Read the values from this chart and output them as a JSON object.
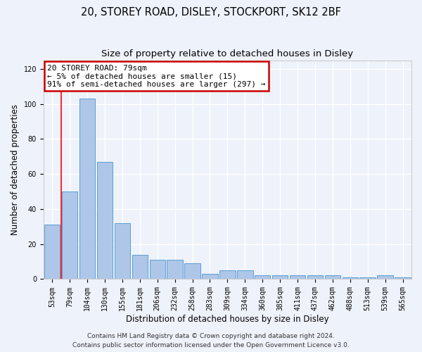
{
  "title_line1": "20, STOREY ROAD, DISLEY, STOCKPORT, SK12 2BF",
  "title_line2": "Size of property relative to detached houses in Disley",
  "xlabel": "Distribution of detached houses by size in Disley",
  "ylabel": "Number of detached properties",
  "categories": [
    "53sqm",
    "79sqm",
    "104sqm",
    "130sqm",
    "155sqm",
    "181sqm",
    "206sqm",
    "232sqm",
    "258sqm",
    "283sqm",
    "309sqm",
    "334sqm",
    "360sqm",
    "385sqm",
    "411sqm",
    "437sqm",
    "462sqm",
    "488sqm",
    "513sqm",
    "539sqm",
    "565sqm"
  ],
  "values": [
    31,
    50,
    103,
    67,
    32,
    14,
    11,
    11,
    9,
    3,
    5,
    5,
    2,
    2,
    2,
    2,
    2,
    1,
    1,
    2,
    1
  ],
  "bar_color": "#aec6e8",
  "bar_edge_color": "#5a9fd4",
  "red_line_index": 1,
  "ylim": [
    0,
    125
  ],
  "yticks": [
    0,
    20,
    40,
    60,
    80,
    100,
    120
  ],
  "annotation_line1": "20 STOREY ROAD: 79sqm",
  "annotation_line2": "← 5% of detached houses are smaller (15)",
  "annotation_line3": "91% of semi-detached houses are larger (297) →",
  "annotation_box_color": "#ffffff",
  "annotation_box_edge": "#cc0000",
  "footer_line1": "Contains HM Land Registry data © Crown copyright and database right 2024.",
  "footer_line2": "Contains public sector information licensed under the Open Government Licence v3.0.",
  "background_color": "#eef2fb",
  "grid_color": "#ffffff",
  "title_fontsize": 10.5,
  "subtitle_fontsize": 9.5,
  "axis_label_fontsize": 8.5,
  "tick_fontsize": 7,
  "annot_fontsize": 8,
  "footer_fontsize": 6.5
}
